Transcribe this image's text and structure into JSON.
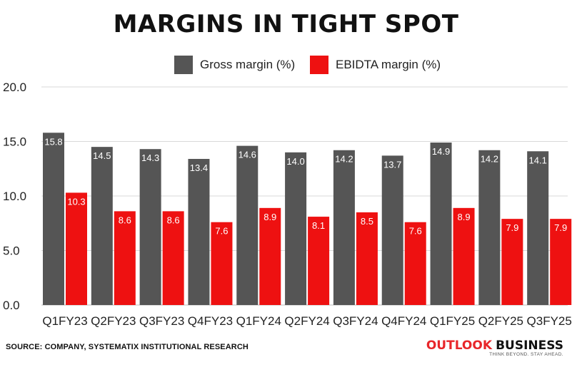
{
  "title": "MARGINS IN TIGHT SPOT",
  "source": "SOURCE: COMPANY, SYSTEMATIX INSTITUTIONAL RESEARCH",
  "brand": {
    "word1": "OUTLOOK",
    "word2": "BUSINESS",
    "tagline": "THINK BEYOND. STAY AHEAD."
  },
  "colors": {
    "gross": "#555555",
    "ebidta": "#ee1111",
    "grid": "#d9d9d9"
  },
  "chart_data": {
    "type": "bar",
    "categories": [
      "Q1FY23",
      "Q2FY23",
      "Q3FY23",
      "Q4FY23",
      "Q1FY24",
      "Q2FY24",
      "Q3FY24",
      "Q4FY24",
      "Q1FY25",
      "Q2FY25",
      "Q3FY25"
    ],
    "series": [
      {
        "name": "Gross margin (%)",
        "values": [
          15.8,
          14.5,
          14.3,
          13.4,
          14.6,
          14.0,
          14.2,
          13.7,
          14.9,
          14.2,
          14.1
        ]
      },
      {
        "name": "EBIDTA margin (%)",
        "values": [
          10.3,
          8.6,
          8.6,
          7.6,
          8.9,
          8.1,
          8.5,
          7.6,
          8.9,
          7.9,
          7.9
        ]
      }
    ],
    "yticks": [
      "0.0",
      "5.0",
      "10.0",
      "15.0",
      "20.0"
    ],
    "ylim": [
      0,
      20
    ],
    "grid": true,
    "legend": "top-center",
    "data_labels": true
  }
}
